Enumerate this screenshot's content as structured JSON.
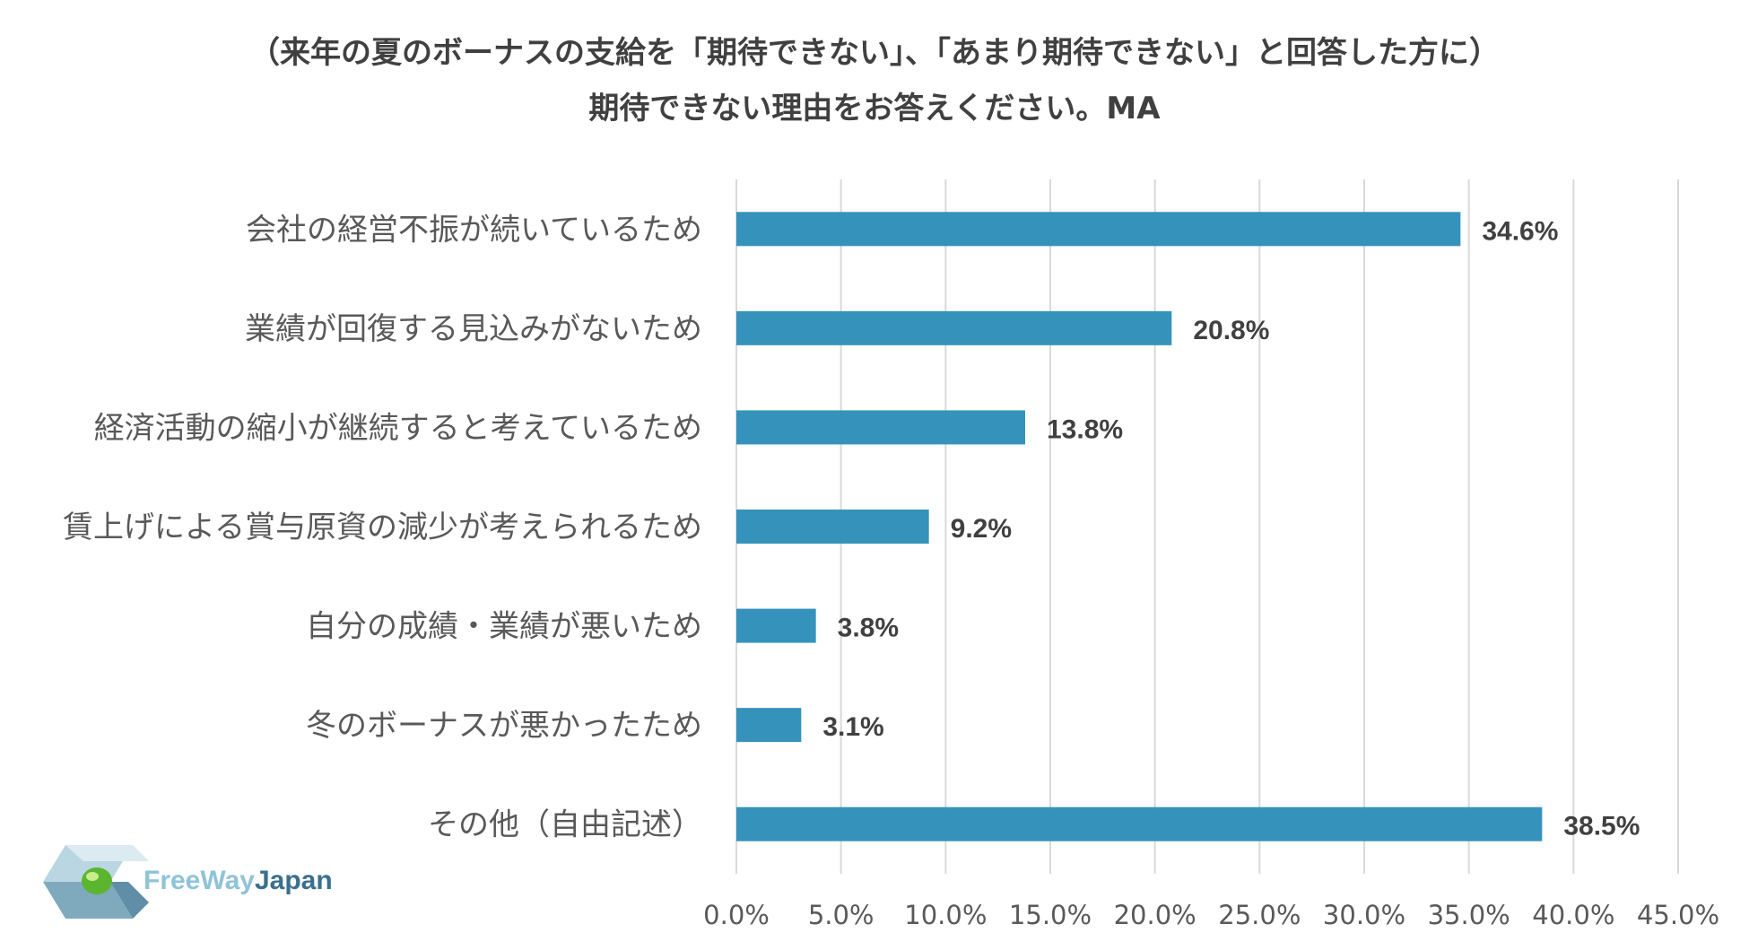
{
  "title_lines": [
    "（来年の夏のボーナスの支給を「期待できない」、「あまり期待できない」と回答した方に）",
    "期待できない理由をお答えください。MA"
  ],
  "logo": {
    "part1": "FreeWay",
    "part2": "Japan"
  },
  "colors": {
    "bar": "#3593bb",
    "grid": "#d9d9d9"
  },
  "chart_data": {
    "type": "bar",
    "orientation": "horizontal",
    "categories": [
      "会社の経営不振が続いているため",
      "業績が回復する見込みがないため",
      "経済活動の縮小が継続すると考えているため",
      "賃上げによる賞与原資の減少が考えられるため",
      "自分の成績・業績が悪いため",
      "冬のボーナスが悪かったため",
      "その他（自由記述）"
    ],
    "values": [
      34.6,
      20.8,
      13.8,
      9.2,
      3.8,
      3.1,
      38.5
    ],
    "data_labels": [
      "34.6%",
      "20.8%",
      "13.8%",
      "9.2%",
      "3.8%",
      "3.1%",
      "38.5%"
    ],
    "x_ticks": [
      "0.0%",
      "5.0%",
      "10.0%",
      "15.0%",
      "20.0%",
      "25.0%",
      "30.0%",
      "35.0%",
      "40.0%",
      "45.0%"
    ],
    "xlim": [
      0,
      45
    ],
    "grid": true
  }
}
